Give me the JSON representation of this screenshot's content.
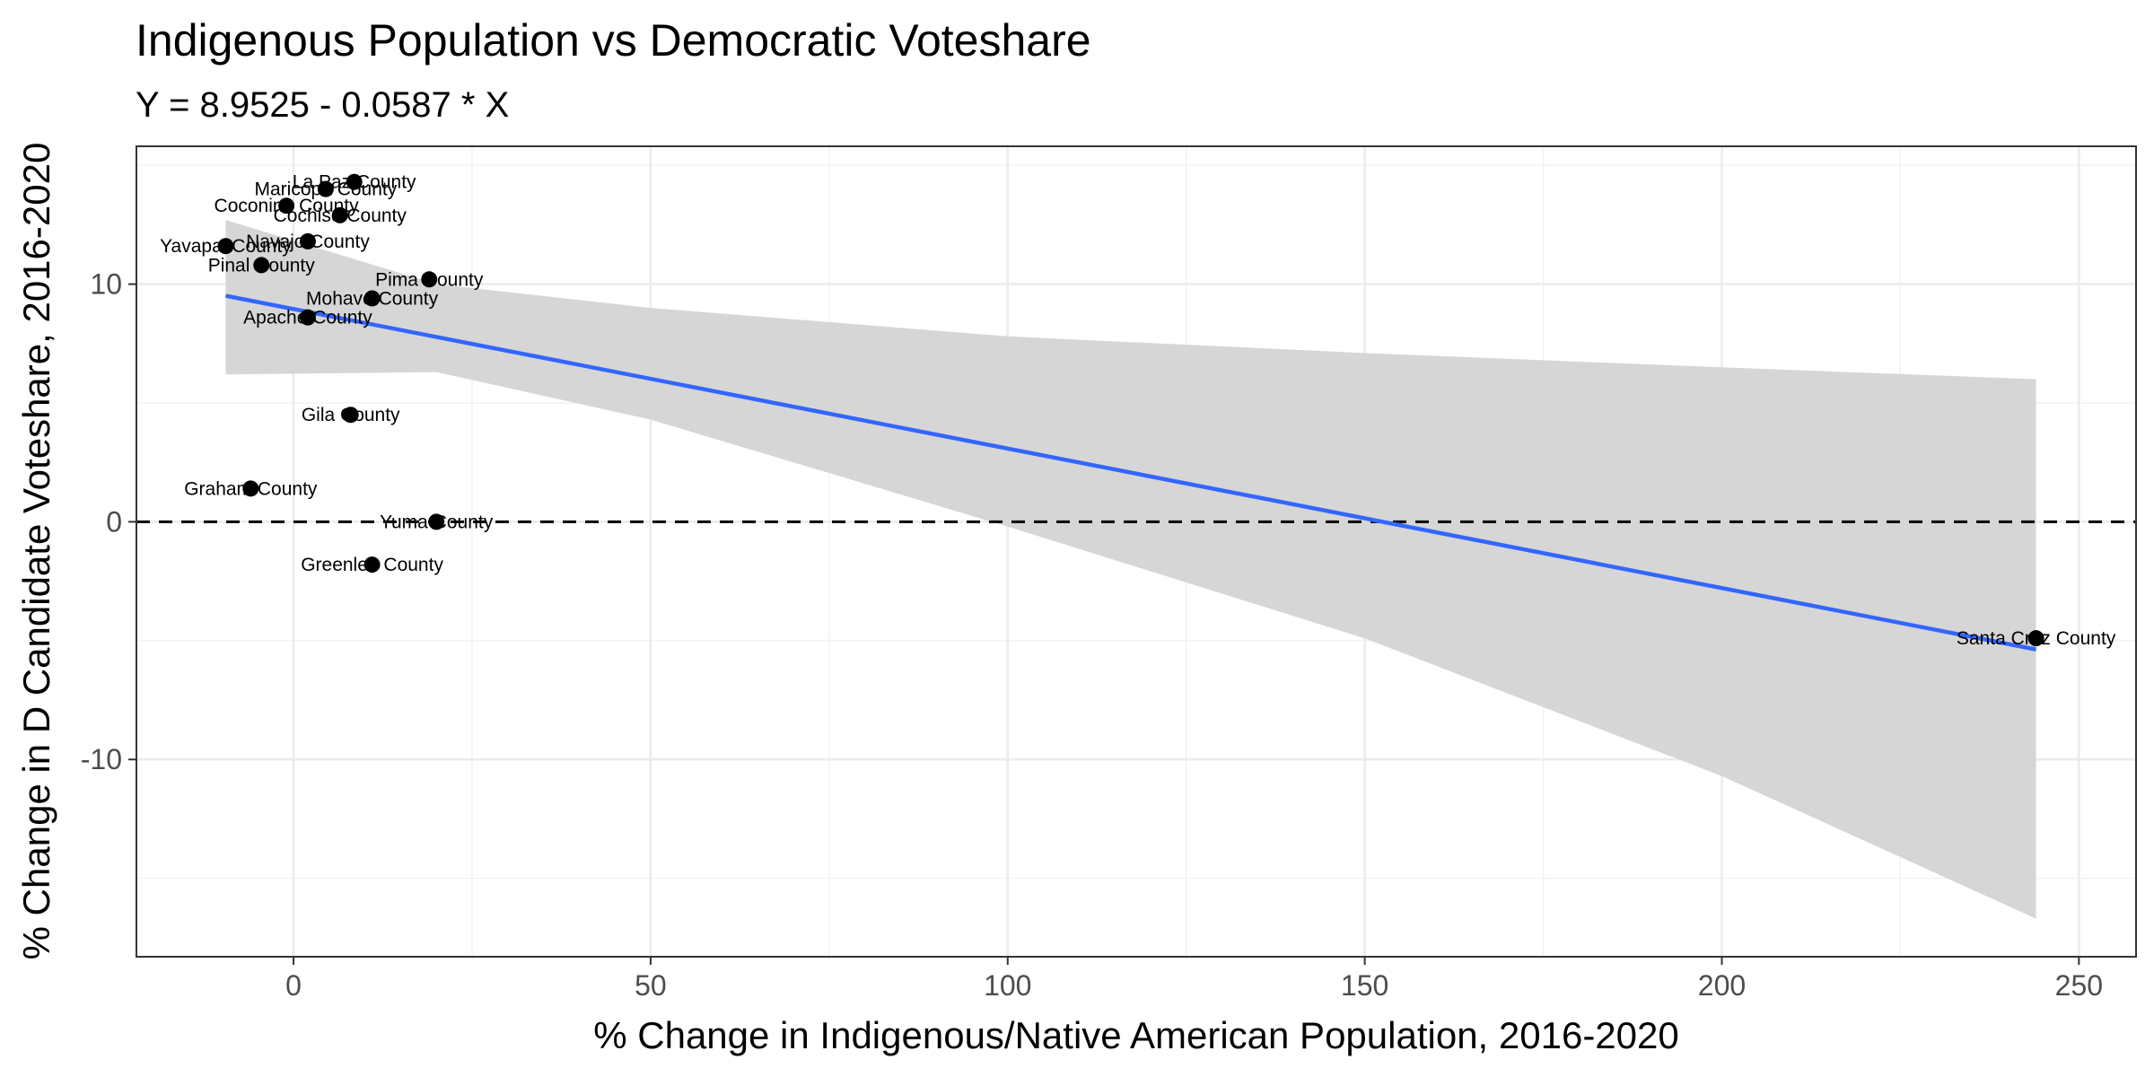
{
  "chart_data": {
    "type": "scatter",
    "title": "Indigenous Population vs Democratic Voteshare",
    "subtitle": "Y = 8.9525 - 0.0587 * X",
    "xlabel": "% Change in Indigenous/Native American Population, 2016-2020",
    "ylabel": "% Change in D Candidate Voteshare, 2016-2020",
    "xlim": [
      -22,
      258
    ],
    "ylim": [
      -18.3,
      15.8
    ],
    "x_ticks": [
      0,
      50,
      100,
      150,
      200,
      250
    ],
    "x_tick_labels": [
      "0",
      "50",
      "100",
      "150",
      "200",
      "250"
    ],
    "y_ticks": [
      -10,
      0,
      10
    ],
    "y_tick_labels": [
      "-10",
      "0",
      "10"
    ],
    "grid": true,
    "reference_line": {
      "y": 0,
      "style": "dashed"
    },
    "fit": {
      "intercept": 8.9525,
      "slope": -0.0587,
      "x_range": [
        -9.5,
        244
      ],
      "color": "#3366FF",
      "confidence_band": [
        {
          "x": -9.5,
          "lower": 6.2,
          "upper": 12.7
        },
        {
          "x": 20,
          "lower": 6.3,
          "upper": 10.0
        },
        {
          "x": 50,
          "lower": 4.3,
          "upper": 9.0
        },
        {
          "x": 100,
          "lower": -0.2,
          "upper": 7.8
        },
        {
          "x": 150,
          "lower": -4.9,
          "upper": 7.1
        },
        {
          "x": 200,
          "lower": -10.7,
          "upper": 6.5
        },
        {
          "x": 244,
          "lower": -16.7,
          "upper": 6.0
        }
      ],
      "band_color": "#d6d6d6"
    },
    "points": [
      {
        "name": "La Paz County",
        "x": 8.5,
        "y": 14.3
      },
      {
        "name": "Maricopa County",
        "x": 4.5,
        "y": 14.0
      },
      {
        "name": "Coconino County",
        "x": -1.0,
        "y": 13.3
      },
      {
        "name": "Cochise County",
        "x": 6.5,
        "y": 12.9
      },
      {
        "name": "Navajo County",
        "x": 2.0,
        "y": 11.8
      },
      {
        "name": "Yavapai County",
        "x": -9.5,
        "y": 11.6
      },
      {
        "name": "Pinal County",
        "x": -4.5,
        "y": 10.8
      },
      {
        "name": "Pima County",
        "x": 19.0,
        "y": 10.2
      },
      {
        "name": "Mohave County",
        "x": 11.0,
        "y": 9.4
      },
      {
        "name": "Apache County",
        "x": 2.0,
        "y": 8.6
      },
      {
        "name": "Gila County",
        "x": 8.0,
        "y": 4.5
      },
      {
        "name": "Graham County",
        "x": -6.0,
        "y": 1.4
      },
      {
        "name": "Yuma County",
        "x": 20.0,
        "y": 0.0
      },
      {
        "name": "Greenlee County",
        "x": 11.0,
        "y": -1.8
      },
      {
        "name": "Santa Cruz County",
        "x": 244.0,
        "y": -4.9
      }
    ]
  }
}
